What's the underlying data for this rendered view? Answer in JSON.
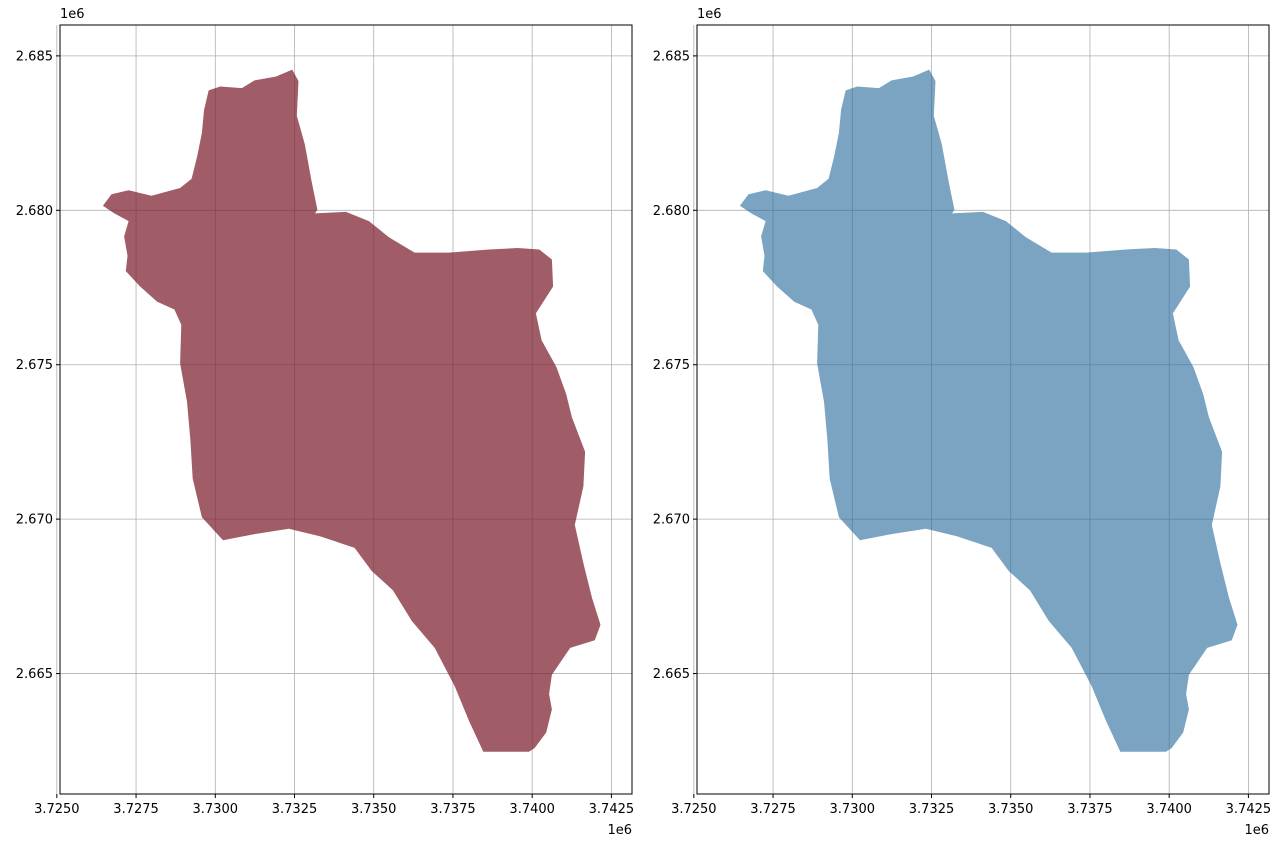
{
  "chart_data": [
    {
      "type": "scatter",
      "title": "",
      "xlabel": "",
      "ylabel": "",
      "x_offset_label": "1e6",
      "y_offset_label": "1e6",
      "xlim": [
        3.7251,
        3.74315
      ],
      "ylim": [
        2.6611,
        2.686
      ],
      "xticks": [
        3.725,
        3.7275,
        3.73,
        3.7325,
        3.735,
        3.7375,
        3.74,
        3.7425
      ],
      "xtick_labels": [
        "3.7250",
        "3.7275",
        "3.7300",
        "3.7325",
        "3.7350",
        "3.7375",
        "3.7400",
        "3.7425"
      ],
      "yticks": [
        2.665,
        2.67,
        2.675,
        2.68,
        2.685
      ],
      "ytick_labels": [
        "2.665",
        "2.670",
        "2.675",
        "2.680",
        "2.685"
      ],
      "grid": true,
      "layers": [
        "region polygon",
        "hexagon grid cells",
        "cell centroid points"
      ],
      "hexagon_face_color": "#ff7c78",
      "region_color": "#7b1f2e",
      "region_alpha": 0.72,
      "hexagon_edge_color": "#000000"
    },
    {
      "type": "scatter",
      "title": "",
      "xlabel": "",
      "ylabel": "",
      "x_offset_label": "1e6",
      "y_offset_label": "1e6",
      "xlim": [
        3.7251,
        3.74315
      ],
      "ylim": [
        2.6611,
        2.686
      ],
      "xticks": [
        3.725,
        3.7275,
        3.73,
        3.7325,
        3.735,
        3.7375,
        3.74,
        3.7425
      ],
      "xtick_labels": [
        "3.7250",
        "3.7275",
        "3.7300",
        "3.7325",
        "3.7350",
        "3.7375",
        "3.7400",
        "3.7425"
      ],
      "yticks": [
        2.665,
        2.67,
        2.675,
        2.68,
        2.685
      ],
      "ytick_labels": [
        "2.665",
        "2.670",
        "2.675",
        "2.680",
        "2.685"
      ],
      "grid": true,
      "layers": [
        "region polygon",
        "hexagon grid cells colored by value",
        "cell centroid points"
      ],
      "colormap": "viridis",
      "region_color": "#21679a",
      "hexagon_edge_color": "#000000"
    }
  ]
}
